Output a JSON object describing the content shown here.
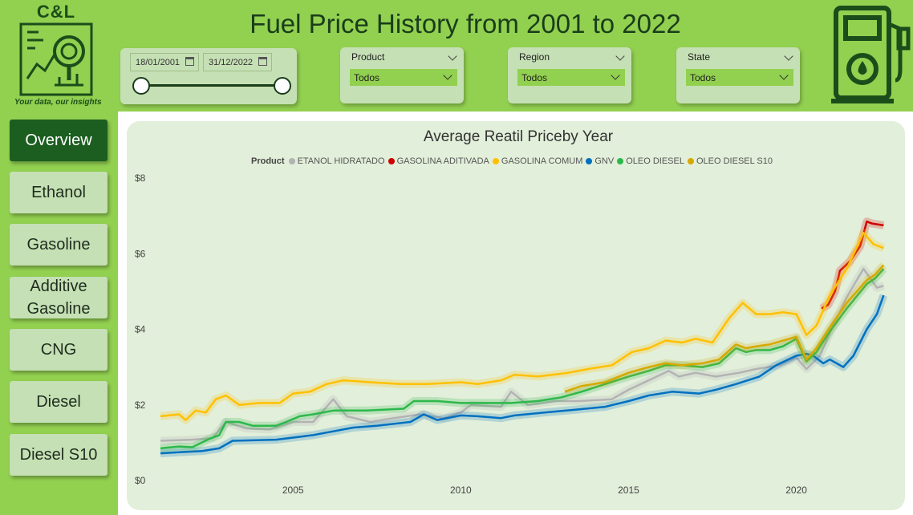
{
  "logo": {
    "title": "C&L",
    "tagline": "Your data, our insights"
  },
  "page_title": "Fuel Price History from 2001 to 2022",
  "date_slicer": {
    "from": "18/01/2001",
    "to": "31/12/2022"
  },
  "filters": {
    "product": {
      "label": "Product",
      "value": "Todos"
    },
    "region": {
      "label": "Region",
      "value": "Todos"
    },
    "state": {
      "label": "State",
      "value": "Todos"
    }
  },
  "nav": {
    "overview": "Overview",
    "ethanol": "Ethanol",
    "gasoline": "Gasoline",
    "additive_l1": "Additive",
    "additive_l2": "Gasoline",
    "cng": "CNG",
    "diesel": "Diesel",
    "diesel_s10": "Diesel S10"
  },
  "icons": [
    "magnifier-chart-icon",
    "fuel-pump-icon",
    "calendar-icon",
    "chevron-down-icon"
  ],
  "colors": {
    "background": "#92d050",
    "card": "#c5e0b4",
    "chart_bg": "#e2efda",
    "active_nav": "#1b5e20"
  },
  "chart_data": {
    "type": "line",
    "title": "Average Reatil Priceby Year",
    "legend_title": "Product",
    "xlabel": "",
    "ylabel": "",
    "ylim": [
      0,
      8
    ],
    "y_ticks": [
      "$0",
      "$2",
      "$4",
      "$6",
      "$8"
    ],
    "y_tick_values": [
      0,
      2,
      4,
      6,
      8
    ],
    "x_ticks": [
      "2005",
      "2010",
      "2015",
      "2020"
    ],
    "x_tick_values": [
      2005,
      2010,
      2015,
      2020
    ],
    "xlim": [
      2001.05,
      2022.95
    ],
    "grid": false,
    "legend_position": "top",
    "series": [
      {
        "name": "ETANOL HIDRATADO",
        "color": "#b3b3b3",
        "points": [
          [
            2001.05,
            1.05
          ],
          [
            2002,
            1.08
          ],
          [
            2002.6,
            1.12
          ],
          [
            2003,
            1.55
          ],
          [
            2003.6,
            1.38
          ],
          [
            2004.3,
            1.35
          ],
          [
            2005,
            1.55
          ],
          [
            2005.6,
            1.55
          ],
          [
            2006.2,
            2.15
          ],
          [
            2006.6,
            1.7
          ],
          [
            2007.3,
            1.55
          ],
          [
            2008,
            1.65
          ],
          [
            2008.8,
            1.75
          ],
          [
            2009.5,
            1.65
          ],
          [
            2010,
            1.8
          ],
          [
            2010.3,
            2.0
          ],
          [
            2011.2,
            1.95
          ],
          [
            2011.5,
            2.35
          ],
          [
            2012,
            2.0
          ],
          [
            2012.8,
            2.1
          ],
          [
            2013.5,
            2.1
          ],
          [
            2014.5,
            2.15
          ],
          [
            2015,
            2.4
          ],
          [
            2015.6,
            2.65
          ],
          [
            2016.2,
            2.9
          ],
          [
            2016.5,
            2.75
          ],
          [
            2017,
            2.85
          ],
          [
            2017.6,
            2.75
          ],
          [
            2018.3,
            2.85
          ],
          [
            2018.8,
            2.95
          ],
          [
            2019.5,
            3.05
          ],
          [
            2020,
            3.25
          ],
          [
            2020.3,
            2.95
          ],
          [
            2020.7,
            3.3
          ],
          [
            2021,
            3.9
          ],
          [
            2021.5,
            4.85
          ],
          [
            2022,
            5.6
          ],
          [
            2022.4,
            5.1
          ],
          [
            2022.6,
            5.15
          ]
        ]
      },
      {
        "name": "GASOLINA ADITIVADA",
        "color": "#d00000",
        "points": [
          [
            2020.75,
            4.55
          ],
          [
            2020.95,
            4.65
          ],
          [
            2021.15,
            5.0
          ],
          [
            2021.3,
            5.55
          ],
          [
            2021.6,
            5.8
          ],
          [
            2021.9,
            6.2
          ],
          [
            2022.1,
            6.85
          ],
          [
            2022.25,
            6.8
          ],
          [
            2022.6,
            6.75
          ]
        ]
      },
      {
        "name": "GASOLINA COMUM",
        "color": "#ffc000",
        "points": [
          [
            2001.05,
            1.7
          ],
          [
            2001.6,
            1.75
          ],
          [
            2001.8,
            1.6
          ],
          [
            2002.1,
            1.85
          ],
          [
            2002.4,
            1.8
          ],
          [
            2002.7,
            2.15
          ],
          [
            2003,
            2.25
          ],
          [
            2003.4,
            2.0
          ],
          [
            2004,
            2.05
          ],
          [
            2004.6,
            2.05
          ],
          [
            2005,
            2.3
          ],
          [
            2005.5,
            2.35
          ],
          [
            2006,
            2.55
          ],
          [
            2006.5,
            2.65
          ],
          [
            2007.3,
            2.6
          ],
          [
            2008.2,
            2.55
          ],
          [
            2009,
            2.55
          ],
          [
            2010,
            2.6
          ],
          [
            2010.5,
            2.55
          ],
          [
            2011.2,
            2.65
          ],
          [
            2011.6,
            2.8
          ],
          [
            2012.3,
            2.75
          ],
          [
            2013.2,
            2.85
          ],
          [
            2013.8,
            2.95
          ],
          [
            2014.5,
            3.05
          ],
          [
            2015.1,
            3.4
          ],
          [
            2015.6,
            3.5
          ],
          [
            2016.1,
            3.7
          ],
          [
            2016.6,
            3.65
          ],
          [
            2017,
            3.75
          ],
          [
            2017.5,
            3.65
          ],
          [
            2018,
            4.3
          ],
          [
            2018.4,
            4.7
          ],
          [
            2018.8,
            4.4
          ],
          [
            2019.2,
            4.4
          ],
          [
            2019.6,
            4.45
          ],
          [
            2020,
            4.4
          ],
          [
            2020.3,
            3.85
          ],
          [
            2020.6,
            4.1
          ],
          [
            2021,
            4.9
          ],
          [
            2021.5,
            5.6
          ],
          [
            2022,
            6.55
          ],
          [
            2022.3,
            6.25
          ],
          [
            2022.6,
            6.15
          ]
        ]
      },
      {
        "name": "GNV",
        "color": "#0070c0",
        "points": [
          [
            2001.05,
            0.72
          ],
          [
            2001.6,
            0.75
          ],
          [
            2002.3,
            0.78
          ],
          [
            2002.8,
            0.85
          ],
          [
            2003.2,
            1.05
          ],
          [
            2004.5,
            1.08
          ],
          [
            2005.6,
            1.2
          ],
          [
            2006.2,
            1.3
          ],
          [
            2006.8,
            1.4
          ],
          [
            2007.5,
            1.45
          ],
          [
            2008.5,
            1.55
          ],
          [
            2008.9,
            1.75
          ],
          [
            2009.3,
            1.6
          ],
          [
            2010,
            1.72
          ],
          [
            2010.5,
            1.7
          ],
          [
            2011.2,
            1.65
          ],
          [
            2011.6,
            1.72
          ],
          [
            2012.5,
            1.8
          ],
          [
            2013.5,
            1.88
          ],
          [
            2014.3,
            1.95
          ],
          [
            2015,
            2.1
          ],
          [
            2015.6,
            2.25
          ],
          [
            2016.3,
            2.35
          ],
          [
            2017.1,
            2.3
          ],
          [
            2017.6,
            2.4
          ],
          [
            2018.2,
            2.55
          ],
          [
            2018.9,
            2.75
          ],
          [
            2019.4,
            3.05
          ],
          [
            2020,
            3.3
          ],
          [
            2020.3,
            3.35
          ],
          [
            2020.5,
            3.3
          ],
          [
            2020.8,
            3.1
          ],
          [
            2021,
            3.2
          ],
          [
            2021.4,
            3.0
          ],
          [
            2021.7,
            3.3
          ],
          [
            2022.1,
            4.0
          ],
          [
            2022.4,
            4.4
          ],
          [
            2022.6,
            4.9
          ]
        ]
      },
      {
        "name": "OLEO DIESEL",
        "color": "#2db84b",
        "points": [
          [
            2001.05,
            0.85
          ],
          [
            2001.6,
            0.9
          ],
          [
            2002,
            0.88
          ],
          [
            2002.5,
            1.1
          ],
          [
            2002.8,
            1.2
          ],
          [
            2003,
            1.55
          ],
          [
            2003.4,
            1.55
          ],
          [
            2003.8,
            1.45
          ],
          [
            2004.5,
            1.45
          ],
          [
            2004.8,
            1.55
          ],
          [
            2005.2,
            1.7
          ],
          [
            2005.6,
            1.75
          ],
          [
            2006.2,
            1.85
          ],
          [
            2007.2,
            1.85
          ],
          [
            2008.3,
            1.9
          ],
          [
            2008.6,
            2.1
          ],
          [
            2009.3,
            2.1
          ],
          [
            2010,
            2.05
          ],
          [
            2011.5,
            2.05
          ],
          [
            2012.3,
            2.1
          ],
          [
            2013,
            2.2
          ],
          [
            2013.6,
            2.35
          ],
          [
            2014.3,
            2.55
          ],
          [
            2015,
            2.75
          ],
          [
            2015.6,
            2.9
          ],
          [
            2016.1,
            3.05
          ],
          [
            2016.6,
            3.05
          ],
          [
            2017.2,
            3.0
          ],
          [
            2017.7,
            3.1
          ],
          [
            2018.2,
            3.5
          ],
          [
            2018.5,
            3.4
          ],
          [
            2018.8,
            3.45
          ],
          [
            2019.2,
            3.45
          ],
          [
            2019.6,
            3.55
          ],
          [
            2020,
            3.75
          ],
          [
            2020.3,
            3.15
          ],
          [
            2020.6,
            3.4
          ],
          [
            2021,
            3.95
          ],
          [
            2021.5,
            4.55
          ],
          [
            2022.1,
            5.2
          ],
          [
            2022.35,
            5.35
          ],
          [
            2022.6,
            5.6
          ]
        ]
      },
      {
        "name": "OLEO DIESEL S10",
        "color": "#d6a900",
        "points": [
          [
            2013.1,
            2.35
          ],
          [
            2013.6,
            2.5
          ],
          [
            2014.3,
            2.6
          ],
          [
            2015,
            2.85
          ],
          [
            2015.6,
            3.0
          ],
          [
            2016.1,
            3.1
          ],
          [
            2016.6,
            3.05
          ],
          [
            2017.2,
            3.1
          ],
          [
            2017.7,
            3.2
          ],
          [
            2018.2,
            3.6
          ],
          [
            2018.5,
            3.5
          ],
          [
            2018.8,
            3.55
          ],
          [
            2019.2,
            3.6
          ],
          [
            2019.6,
            3.7
          ],
          [
            2020,
            3.8
          ],
          [
            2020.3,
            3.2
          ],
          [
            2020.6,
            3.5
          ],
          [
            2021,
            4.05
          ],
          [
            2021.5,
            4.7
          ],
          [
            2022.1,
            5.3
          ],
          [
            2022.35,
            5.45
          ],
          [
            2022.6,
            5.7
          ]
        ]
      }
    ]
  }
}
